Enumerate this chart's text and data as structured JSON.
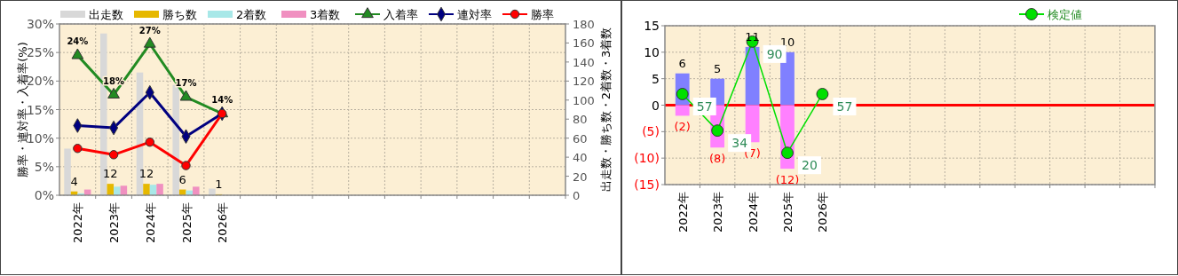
{
  "chart_data": [
    {
      "type": "bar",
      "categories": [
        "2022年",
        "2023年",
        "2024年",
        "2025年",
        "2026年",
        null,
        null,
        null,
        null,
        null,
        null,
        null,
        null,
        null
      ],
      "ylabel": "勝率・連対率・入着率(%)",
      "y2label": "出走数・勝ち数・2着数・3着数",
      "ylim": [
        0,
        30
      ],
      "yticks": [
        {
          "value": 0,
          "label": "0%"
        },
        {
          "value": 5,
          "label": "5%"
        },
        {
          "value": 10,
          "label": "10%"
        },
        {
          "value": 15,
          "label": "15%"
        },
        {
          "value": 20,
          "label": "20%"
        },
        {
          "value": 25,
          "label": "25%"
        },
        {
          "value": 30,
          "label": "30%"
        }
      ],
      "y2lim": [
        0,
        180
      ],
      "y2ticks": [
        0,
        20,
        40,
        60,
        80,
        100,
        120,
        140,
        160,
        180
      ],
      "grid": true,
      "legend": "top",
      "series": [
        {
          "name": "出走数",
          "axis": "y2",
          "color": "#d8d8d8",
          "values": [
            49,
            170,
            129,
            116,
            7,
            null,
            null,
            null,
            null,
            null,
            null,
            null,
            null,
            null
          ]
        },
        {
          "name": "勝ち数",
          "axis": "y2",
          "color": "#e6b800",
          "values": [
            4,
            12,
            12,
            6,
            1,
            null,
            null,
            null,
            null,
            null,
            null,
            null,
            null,
            null
          ],
          "value_labels": [
            "4",
            "12",
            "12",
            "6",
            "1",
            null,
            null,
            null,
            null,
            null,
            null,
            null,
            null,
            null
          ]
        },
        {
          "name": "2着数",
          "axis": "y2",
          "color": "#a8e8e8",
          "values": [
            2,
            9,
            11,
            5,
            0,
            null,
            null,
            null,
            null,
            null,
            null,
            null,
            null,
            null
          ]
        },
        {
          "name": "3着数",
          "axis": "y2",
          "color": "#f090c0",
          "values": [
            6,
            10,
            12,
            9,
            0,
            null,
            null,
            null,
            null,
            null,
            null,
            null,
            null,
            null
          ]
        },
        {
          "name": "入着率",
          "type": "line",
          "color": "#228b22",
          "marker": "triangle",
          "values": [
            24.5,
            17.6,
            26.5,
            17.2,
            14.3,
            null,
            null,
            null,
            null,
            null,
            null,
            null,
            null,
            null
          ],
          "value_labels": [
            "24%",
            "18%",
            "27%",
            "17%",
            "14%",
            null,
            null,
            null,
            null,
            null,
            null,
            null,
            null,
            null
          ]
        },
        {
          "name": "連対率",
          "type": "line",
          "color": "#000080",
          "marker": "diamond",
          "values": [
            12.2,
            11.8,
            18.0,
            10.3,
            14.3,
            null,
            null,
            null,
            null,
            null,
            null,
            null,
            null,
            null
          ]
        },
        {
          "name": "勝率",
          "type": "line",
          "color": "#ff0000",
          "marker": "circle",
          "values": [
            8.2,
            7.1,
            9.3,
            5.2,
            14.3,
            null,
            null,
            null,
            null,
            null,
            null,
            null,
            null,
            null
          ]
        }
      ]
    },
    {
      "type": "bar",
      "stacked": true,
      "categories": [
        "2022年",
        "2023年",
        "2024年",
        "2025年",
        "2026年",
        null,
        null,
        null,
        null,
        null,
        null,
        null,
        null,
        null
      ],
      "ylim": [
        -15,
        15
      ],
      "yticks": [
        {
          "value": -15,
          "label": "(15)"
        },
        {
          "value": -10,
          "label": "(10)"
        },
        {
          "value": -5,
          "label": "(5)"
        },
        0,
        5,
        10,
        15
      ],
      "y2lim": [
        0,
        100
      ],
      "grid": true,
      "legend": "top right",
      "ref_lines": [
        {
          "axis": "y",
          "value": 0,
          "color": "#ff0000"
        }
      ],
      "series": [
        {
          "color": "#8080ff",
          "values": [
            6,
            5,
            11,
            10,
            null,
            null,
            null,
            null,
            null,
            null,
            null,
            null,
            null,
            null
          ],
          "value_labels": [
            "6",
            "5",
            "11",
            "10",
            null,
            null,
            null,
            null,
            null,
            null,
            null,
            null,
            null,
            null
          ]
        },
        {
          "color": "#ff80ff",
          "values": [
            -2,
            -8,
            -7,
            -12,
            null,
            null,
            null,
            null,
            null,
            null,
            null,
            null,
            null,
            null
          ],
          "value_labels": [
            "(2)",
            "(8)",
            "(7)",
            "(12)",
            null,
            null,
            null,
            null,
            null,
            null,
            null,
            null,
            null,
            null
          ]
        },
        {
          "name": "検定値",
          "type": "line",
          "axis": "y2",
          "color": "#00e000",
          "marker": "circle",
          "values": [
            57,
            34,
            90,
            20,
            57,
            null,
            null,
            null,
            null,
            null,
            null,
            null,
            null,
            null
          ],
          "value_labels": [
            "57",
            "34",
            "90",
            "20",
            "57",
            null,
            null,
            null,
            null,
            null,
            null,
            null,
            null,
            null
          ]
        }
      ]
    }
  ]
}
